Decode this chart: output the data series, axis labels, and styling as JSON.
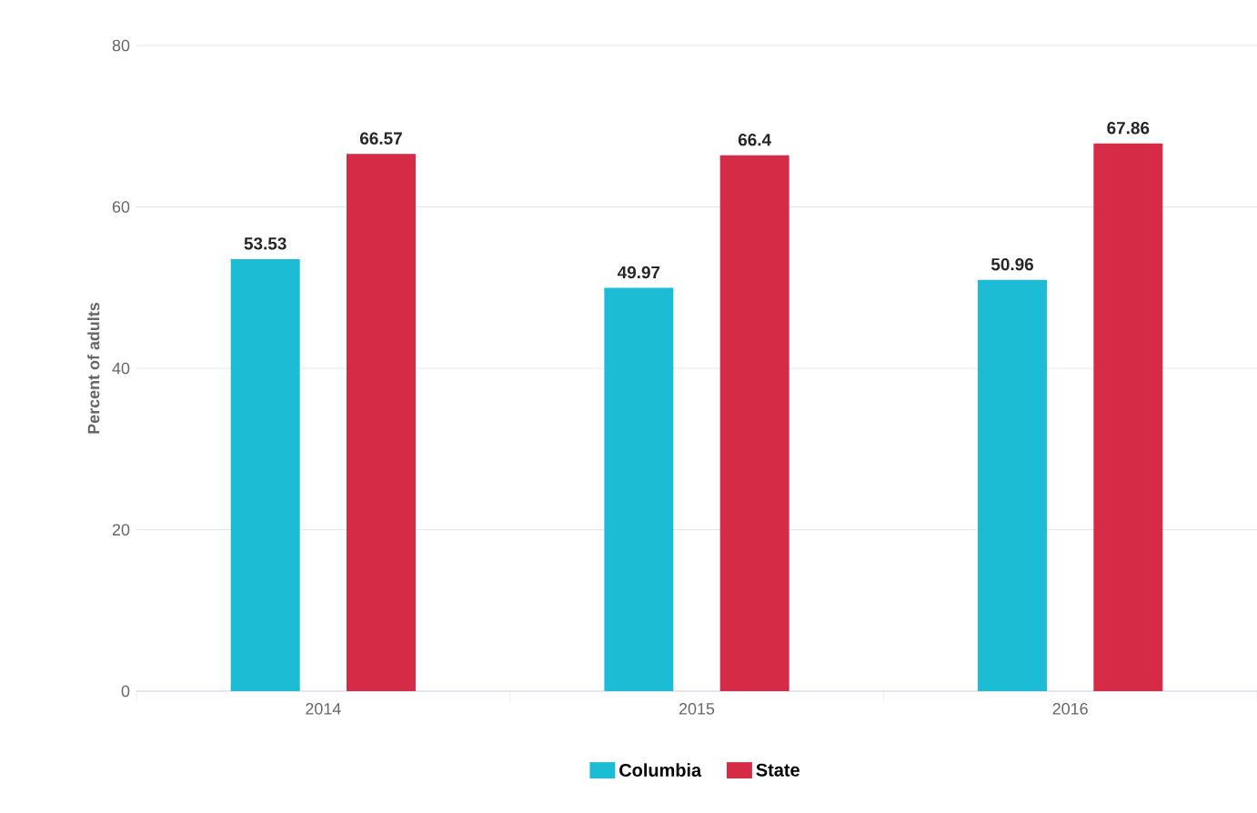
{
  "chart_data": {
    "type": "bar",
    "categories": [
      "2014",
      "2015",
      "2016"
    ],
    "series": [
      {
        "name": "Columbia",
        "color": "#1bbcd4",
        "values": [
          53.53,
          49.97,
          50.96
        ]
      },
      {
        "name": "State",
        "color": "#d62b47",
        "values": [
          66.57,
          66.4,
          67.86
        ]
      }
    ],
    "ylabel": "Percent of adults",
    "ylim": [
      0,
      80
    ],
    "yticks": [
      0,
      20,
      40,
      60,
      80
    ],
    "grid": "y",
    "legend": "bottom",
    "data_labels": true
  }
}
